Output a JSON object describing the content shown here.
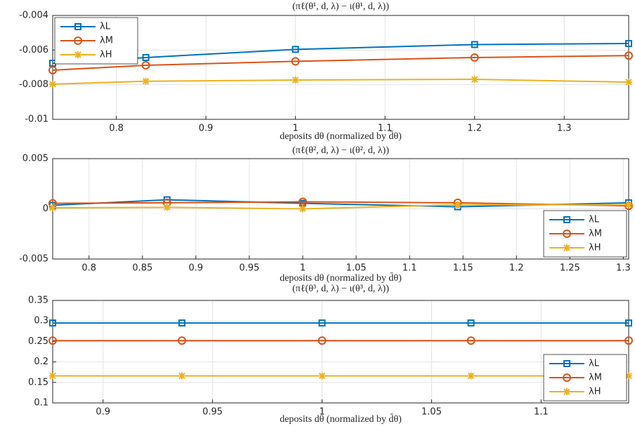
{
  "chart_data": [
    {
      "type": "line",
      "title": "(πℓ(θ¹, d, λ) − ι(θ¹, d, λ))",
      "x_label": "deposits dθ (normalized by d̄θ)",
      "x": [
        0.729,
        0.833,
        1,
        1.2,
        1.372
      ],
      "xlim": [
        0.729,
        1.372
      ],
      "xticks": [
        0.8,
        0.9,
        1,
        1.1,
        1.2,
        1.3
      ],
      "ylim": [
        -0.01,
        -0.004
      ],
      "yticks": [
        -0.01,
        -0.008,
        -0.006,
        -0.004
      ],
      "grid": true,
      "legend": "upper-left",
      "series": [
        {
          "name": "λL",
          "color": "#0072bd",
          "marker": "square",
          "values": [
            -0.00676,
            -0.00643,
            -0.00596,
            -0.00568,
            -0.00562
          ]
        },
        {
          "name": "λM",
          "color": "#d95319",
          "marker": "circle",
          "values": [
            -0.00716,
            -0.00688,
            -0.00665,
            -0.00643,
            -0.00632
          ]
        },
        {
          "name": "λH",
          "color": "#edb120",
          "marker": "star",
          "values": [
            -0.00797,
            -0.0078,
            -0.00773,
            -0.00769,
            -0.00785
          ]
        }
      ]
    },
    {
      "type": "line",
      "title": "(πℓ(θ², d, λ) − ι(θ², d, λ))",
      "x_label": "deposits dθ (normalized by d̄θ)",
      "x": [
        0.766,
        0.873,
        1,
        1.145,
        1.305
      ],
      "xlim": [
        0.766,
        1.305
      ],
      "xticks": [
        0.8,
        0.85,
        0.9,
        0.95,
        1,
        1.05,
        1.1,
        1.15,
        1.2,
        1.25,
        1.3
      ],
      "ylim": [
        -0.005,
        0.005
      ],
      "yticks": [
        -0.005,
        0,
        0.005
      ],
      "grid": true,
      "legend": "lower-right",
      "series": [
        {
          "name": "λL",
          "color": "#0072bd",
          "marker": "square",
          "values": [
            0.00035,
            0.0009,
            0.00055,
            0.0002,
            0.0006
          ]
        },
        {
          "name": "λM",
          "color": "#d95319",
          "marker": "circle",
          "values": [
            0.00055,
            0.0006,
            0.0007,
            0.0006,
            0.0003
          ]
        },
        {
          "name": "λH",
          "color": "#edb120",
          "marker": "star",
          "values": [
            0.0001,
            0.00015,
            0,
            0.0004,
            0.0004
          ]
        }
      ]
    },
    {
      "type": "line",
      "title": "(πℓ(θ³, d, λ) − ι(θ³, d, λ))",
      "x_label": "deposits dθ (normalized by d̄θ)",
      "x": [
        0.877,
        0.936,
        1,
        1.068,
        1.14
      ],
      "xlim": [
        0.877,
        1.14
      ],
      "xticks": [
        0.9,
        0.95,
        1,
        1.05,
        1.1
      ],
      "ylim": [
        0.1,
        0.35
      ],
      "yticks": [
        0.1,
        0.15,
        0.2,
        0.25,
        0.3,
        0.35
      ],
      "grid": true,
      "legend": "lower-right",
      "series": [
        {
          "name": "λL",
          "color": "#0072bd",
          "marker": "square",
          "values": [
            0.295,
            0.295,
            0.295,
            0.295,
            0.295
          ]
        },
        {
          "name": "λM",
          "color": "#d95319",
          "marker": "circle",
          "values": [
            0.252,
            0.252,
            0.252,
            0.252,
            0.252
          ]
        },
        {
          "name": "λH",
          "color": "#edb120",
          "marker": "star",
          "values": [
            0.166,
            0.166,
            0.166,
            0.166,
            0.166
          ]
        }
      ]
    }
  ]
}
